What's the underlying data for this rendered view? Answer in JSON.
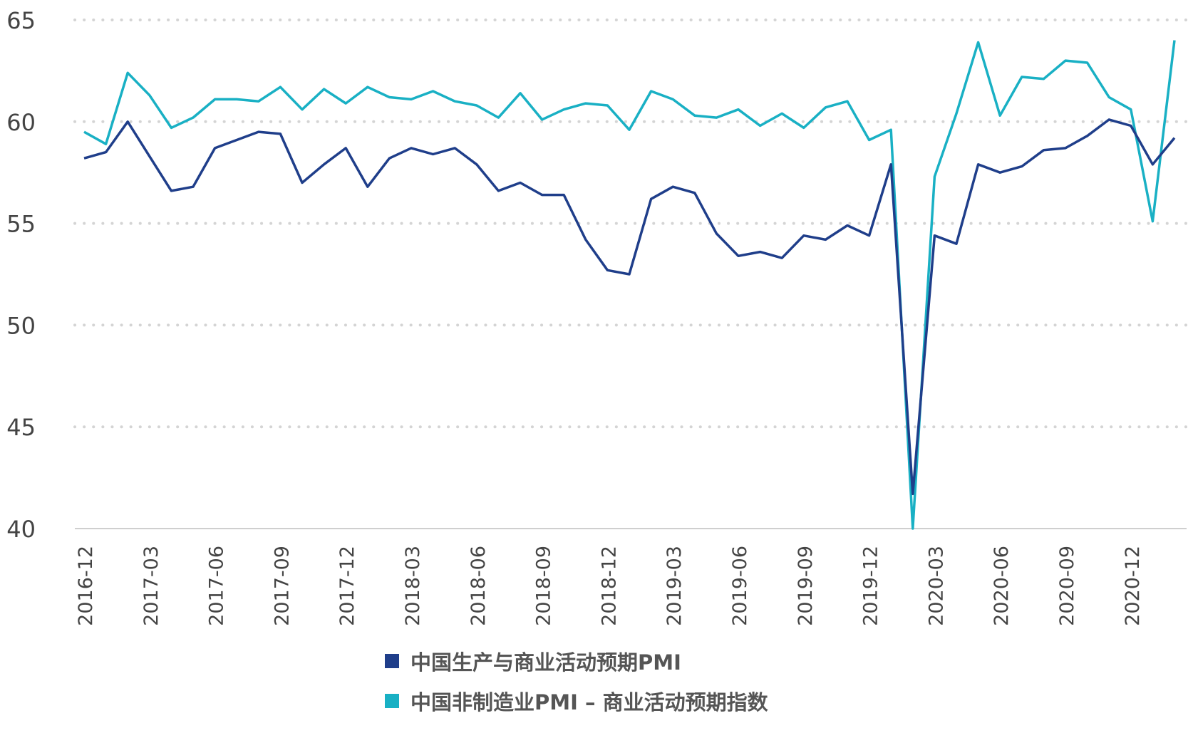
{
  "chart_data": {
    "type": "line",
    "title": "",
    "xlabel": "",
    "ylabel": "",
    "ylim": [
      40,
      65
    ],
    "yticks": [
      40,
      45,
      50,
      55,
      60,
      65
    ],
    "grid": "horizontal dotted",
    "legend_position": "bottom-center",
    "x": [
      "2016-12",
      "2017-01",
      "2017-02",
      "2017-03",
      "2017-04",
      "2017-05",
      "2017-06",
      "2017-07",
      "2017-08",
      "2017-09",
      "2017-10",
      "2017-11",
      "2017-12",
      "2018-01",
      "2018-02",
      "2018-03",
      "2018-04",
      "2018-05",
      "2018-06",
      "2018-07",
      "2018-08",
      "2018-09",
      "2018-10",
      "2018-11",
      "2018-12",
      "2019-01",
      "2019-02",
      "2019-03",
      "2019-04",
      "2019-05",
      "2019-06",
      "2019-07",
      "2019-08",
      "2019-09",
      "2019-10",
      "2019-11",
      "2019-12",
      "2020-01",
      "2020-02",
      "2020-03",
      "2020-04",
      "2020-05",
      "2020-06",
      "2020-07",
      "2020-08",
      "2020-09",
      "2020-10",
      "2020-11",
      "2020-12",
      "2021-01",
      "2021-02"
    ],
    "xtick_labels": [
      "2016-12",
      "2017-03",
      "2017-06",
      "2017-09",
      "2017-12",
      "2018-03",
      "2018-06",
      "2018-09",
      "2018-12",
      "2019-03",
      "2019-06",
      "2019-09",
      "2019-12",
      "2020-03",
      "2020-06",
      "2020-09",
      "2020-12"
    ],
    "series": [
      {
        "name": "中国生产与商业活动预期PMI",
        "color": "#1f3e8a",
        "values": [
          58.2,
          58.5,
          60.0,
          58.3,
          56.6,
          56.8,
          58.7,
          59.1,
          59.5,
          59.4,
          57.0,
          57.9,
          58.7,
          56.8,
          58.2,
          58.7,
          58.4,
          58.7,
          57.9,
          56.6,
          57.0,
          56.4,
          56.4,
          54.2,
          52.7,
          52.5,
          56.2,
          56.8,
          56.5,
          54.5,
          53.4,
          53.6,
          53.3,
          54.4,
          54.2,
          54.9,
          54.4,
          57.9,
          41.7,
          54.4,
          54.0,
          57.9,
          57.5,
          57.8,
          58.6,
          58.7,
          59.3,
          60.1,
          59.8,
          57.9,
          59.2
        ]
      },
      {
        "name": "中国非制造业PMI – 商业活动预期指数",
        "color": "#19b0c4",
        "values": [
          59.5,
          58.9,
          62.4,
          61.3,
          59.7,
          60.2,
          61.1,
          61.1,
          61.0,
          61.7,
          60.6,
          61.6,
          60.9,
          61.7,
          61.2,
          61.1,
          61.5,
          61.0,
          60.8,
          60.2,
          61.4,
          60.1,
          60.6,
          60.9,
          60.8,
          59.6,
          61.5,
          61.1,
          60.3,
          60.2,
          60.6,
          59.8,
          60.4,
          59.7,
          60.7,
          61.0,
          59.1,
          59.6,
          40.0,
          57.3,
          60.4,
          63.9,
          60.3,
          62.2,
          62.1,
          63.0,
          62.9,
          61.2,
          60.6,
          55.1,
          64.0
        ]
      }
    ]
  }
}
